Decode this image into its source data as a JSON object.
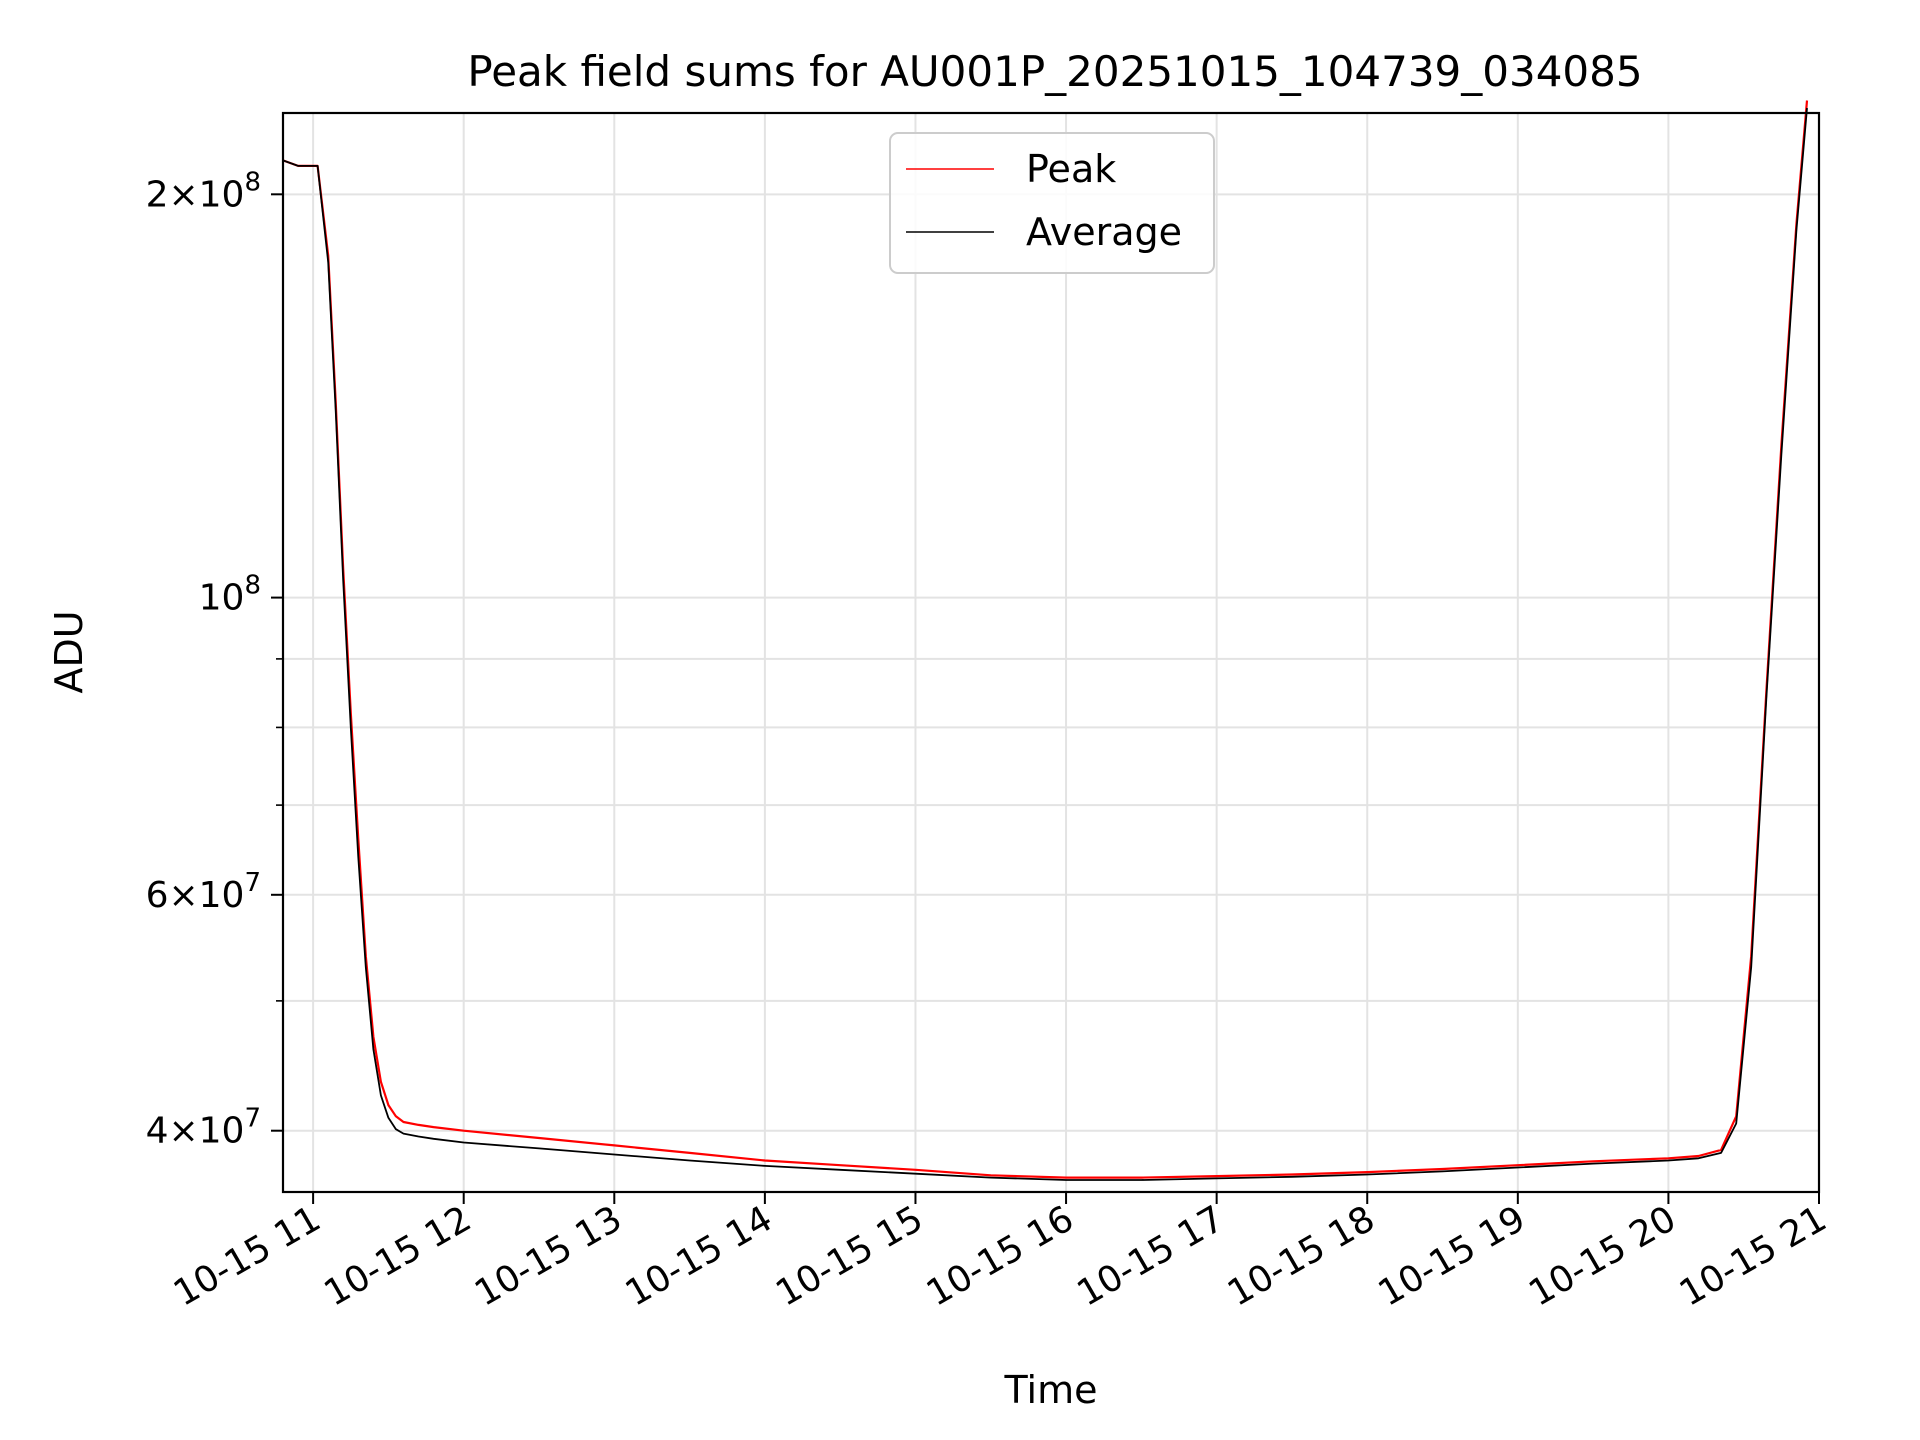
{
  "chart_data": {
    "type": "line",
    "title": "Peak field sums for AU001P_20251015_104739_034085",
    "xlabel": "Time",
    "ylabel": "ADU",
    "yscale": "log",
    "grid": true,
    "legend_position": "top-center",
    "xlim": [
      10.8,
      21.0
    ],
    "ylim": [
      36000000,
      230000000
    ],
    "x_unit": "hours on 2025-10-15",
    "xticks": [
      {
        "value": 11,
        "label": "10-15 11"
      },
      {
        "value": 12,
        "label": "10-15 12"
      },
      {
        "value": 13,
        "label": "10-15 13"
      },
      {
        "value": 14,
        "label": "10-15 14"
      },
      {
        "value": 15,
        "label": "10-15 15"
      },
      {
        "value": 16,
        "label": "10-15 16"
      },
      {
        "value": 17,
        "label": "10-15 17"
      },
      {
        "value": 18,
        "label": "10-15 18"
      },
      {
        "value": 19,
        "label": "10-15 19"
      },
      {
        "value": 20,
        "label": "10-15 20"
      },
      {
        "value": 21,
        "label": "10-15 21"
      }
    ],
    "yticks_major": [
      {
        "value": 40000000,
        "base": "4",
        "times": "×",
        "ten": "10",
        "exp": "7"
      },
      {
        "value": 60000000,
        "base": "6",
        "times": "×",
        "ten": "10",
        "exp": "7"
      },
      {
        "value": 100000000,
        "base": "",
        "times": "",
        "ten": "10",
        "exp": "8"
      },
      {
        "value": 200000000,
        "base": "2",
        "times": "×",
        "ten": "10",
        "exp": "8"
      }
    ],
    "yticks_minor": [
      50000000,
      70000000,
      80000000,
      90000000
    ],
    "series": [
      {
        "name": "Peak",
        "color": "#ff0000",
        "x": [
          10.8,
          10.9,
          11.03,
          11.1,
          11.15,
          11.2,
          11.25,
          11.3,
          11.35,
          11.4,
          11.45,
          11.5,
          11.55,
          11.6,
          11.7,
          11.8,
          12.0,
          12.5,
          13.0,
          13.5,
          14.0,
          14.5,
          15.0,
          15.5,
          16.0,
          16.5,
          17.0,
          17.5,
          18.0,
          18.5,
          19.0,
          19.5,
          20.0,
          20.2,
          20.35,
          20.45,
          20.55,
          20.65,
          20.75,
          20.85,
          20.92
        ],
        "y": [
          212000000,
          210000000,
          210000000,
          180000000,
          140000000,
          105000000,
          82000000,
          66000000,
          54000000,
          47000000,
          43500000,
          41800000,
          41000000,
          40600000,
          40400000,
          40250000,
          40000000,
          39500000,
          39000000,
          38500000,
          38000000,
          37700000,
          37400000,
          37050000,
          36900000,
          36900000,
          37000000,
          37100000,
          37250000,
          37450000,
          37700000,
          37950000,
          38150000,
          38300000,
          38700000,
          41000000,
          54000000,
          85000000,
          130000000,
          190000000,
          235000000
        ]
      },
      {
        "name": "Average",
        "color": "#000000",
        "x": [
          10.8,
          10.9,
          11.03,
          11.1,
          11.15,
          11.2,
          11.25,
          11.3,
          11.35,
          11.4,
          11.45,
          11.5,
          11.55,
          11.6,
          11.7,
          11.8,
          12.0,
          12.5,
          13.0,
          13.5,
          14.0,
          14.5,
          15.0,
          15.5,
          16.0,
          16.5,
          17.0,
          17.5,
          18.0,
          18.5,
          19.0,
          19.5,
          20.0,
          20.2,
          20.35,
          20.45,
          20.55,
          20.65,
          20.75,
          20.85,
          20.92
        ],
        "y": [
          212000000,
          210000000,
          210000000,
          178000000,
          138000000,
          103000000,
          80000000,
          64000000,
          53000000,
          46000000,
          42500000,
          40900000,
          40100000,
          39800000,
          39600000,
          39450000,
          39200000,
          38800000,
          38400000,
          38000000,
          37650000,
          37400000,
          37150000,
          36900000,
          36750000,
          36750000,
          36850000,
          36950000,
          37100000,
          37300000,
          37550000,
          37800000,
          38000000,
          38150000,
          38500000,
          40500000,
          53000000,
          84000000,
          128000000,
          188000000,
          232000000
        ]
      }
    ],
    "legend": [
      {
        "label": "Peak",
        "color": "#ff0000"
      },
      {
        "label": "Average",
        "color": "#000000"
      }
    ]
  }
}
